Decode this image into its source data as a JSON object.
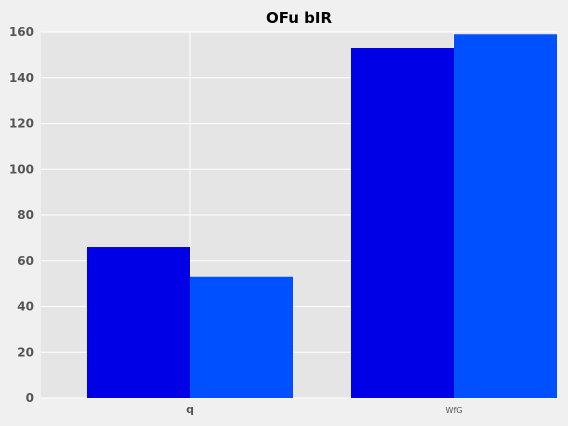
{
  "chart_data": {
    "type": "bar",
    "title": "OFu bIR",
    "xlabel": "",
    "ylabel": "",
    "categories": [
      "q",
      "WfG"
    ],
    "series": [
      {
        "values": [
          66,
          153
        ],
        "color": "#0000e6"
      },
      {
        "values": [
          53,
          159
        ],
        "color": "#0050ff"
      }
    ],
    "ylim": [
      0,
      160
    ],
    "yticks": [
      0,
      20,
      40,
      60,
      80,
      100,
      120,
      140,
      160
    ],
    "grid": true,
    "legend": "none",
    "colors": {
      "plot_background": "#e5e5e5",
      "grid": "#ffffff",
      "figure_background": "#f0f0f0"
    }
  }
}
